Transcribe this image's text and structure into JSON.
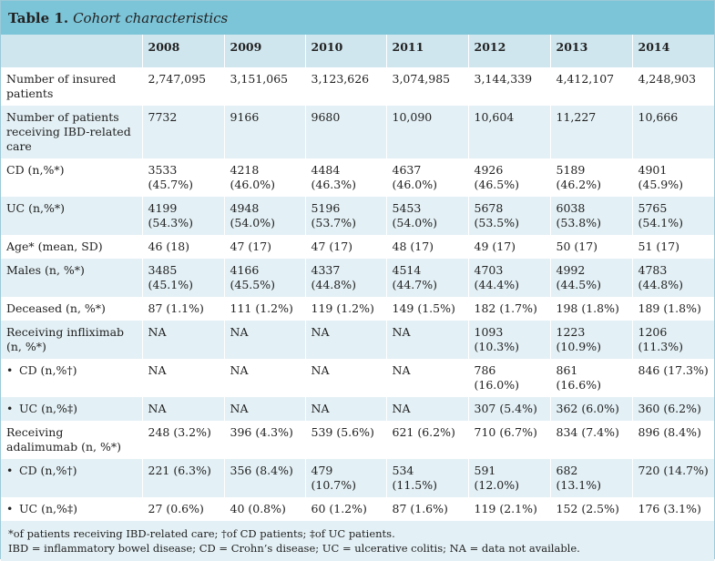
{
  "table": {
    "label": "Table 1.",
    "title": "Cohort characteristics",
    "columns": [
      "",
      "2008",
      "2009",
      "2010",
      "2011",
      "2012",
      "2013",
      "2014"
    ],
    "rows": [
      {
        "label": "Number of insured patients",
        "bullet": false,
        "values": [
          "2,747,095",
          "3,151,065",
          "3,123,626",
          "3,074,985",
          "3,144,339",
          "4,412,107",
          "4,248,903"
        ]
      },
      {
        "label": "Number of patients receiving IBD-related care",
        "bullet": false,
        "values": [
          "7732",
          "9166",
          "9680",
          "10,090",
          "10,604",
          "11,227",
          "10,666"
        ]
      },
      {
        "label": "CD (n,%*)",
        "bullet": false,
        "values": [
          "3533 (45.7%)",
          "4218 (46.0%)",
          "4484 (46.3%)",
          "4637 (46.0%)",
          "4926 (46.5%)",
          "5189 (46.2%)",
          "4901 (45.9%)"
        ]
      },
      {
        "label": "UC (n,%*)",
        "bullet": false,
        "values": [
          "4199 (54.3%)",
          "4948 (54.0%)",
          "5196 (53.7%)",
          "5453 (54.0%)",
          "5678 (53.5%)",
          "6038 (53.8%)",
          "5765 (54.1%)"
        ]
      },
      {
        "label": "Age* (mean, SD)",
        "bullet": false,
        "values": [
          "46 (18)",
          "47 (17)",
          "47 (17)",
          "48 (17)",
          "49 (17)",
          "50 (17)",
          "51 (17)"
        ]
      },
      {
        "label": "Males (n, %*)",
        "bullet": false,
        "values": [
          "3485 (45.1%)",
          "4166 (45.5%)",
          "4337 (44.8%)",
          "4514 (44.7%)",
          "4703 (44.4%)",
          "4992 (44.5%)",
          "4783 (44.8%)"
        ]
      },
      {
        "label": "Deceased (n, %*)",
        "bullet": false,
        "values": [
          "87 (1.1%)",
          "111 (1.2%)",
          "119 (1.2%)",
          "149 (1.5%)",
          "182 (1.7%)",
          "198 (1.8%)",
          "189 (1.8%)"
        ]
      },
      {
        "label": "Receiving infliximab (n, %*)",
        "bullet": false,
        "values": [
          "NA",
          "NA",
          "NA",
          "NA",
          "1093 (10.3%)",
          "1223 (10.9%)",
          "1206 (11.3%)"
        ]
      },
      {
        "label": "CD (n,%†)",
        "bullet": true,
        "values": [
          "NA",
          "NA",
          "NA",
          "NA",
          "786 (16.0%)",
          "861 (16.6%)",
          "846 (17.3%)"
        ]
      },
      {
        "label": "UC (n,%‡)",
        "bullet": true,
        "values": [
          "NA",
          "NA",
          "NA",
          "NA",
          "307 (5.4%)",
          "362 (6.0%)",
          "360 (6.2%)"
        ]
      },
      {
        "label": "Receiving adalimumab (n, %*)",
        "bullet": false,
        "values": [
          "248 (3.2%)",
          "396 (4.3%)",
          "539 (5.6%)",
          "621 (6.2%)",
          "710 (6.7%)",
          "834 (7.4%)",
          "896 (8.4%)"
        ]
      },
      {
        "label": "CD (n,%†)",
        "bullet": true,
        "values": [
          "221 (6.3%)",
          "356 (8.4%)",
          "479 (10.7%)",
          "534 (11.5%)",
          "591 (12.0%)",
          "682 (13.1%)",
          "720 (14.7%)"
        ]
      },
      {
        "label": "UC (n,%‡)",
        "bullet": true,
        "values": [
          "27 (0.6%)",
          "40 (0.8%)",
          "60 (1.2%)",
          "87 (1.6%)",
          "119 (2.1%)",
          "152 (2.5%)",
          "176 (3.1%)"
        ]
      }
    ],
    "footnotes": [
      "*of patients receiving IBD-related care; †of CD patients; ‡of UC patients.",
      "IBD = inflammatory bowel disease; CD = Crohn’s disease; UC = ulcerative colitis; NA = data not available."
    ],
    "colors": {
      "title_bar": "#7cc4d8",
      "header_row": "#cfe6ef",
      "stripe": "#e3f0f5"
    }
  }
}
